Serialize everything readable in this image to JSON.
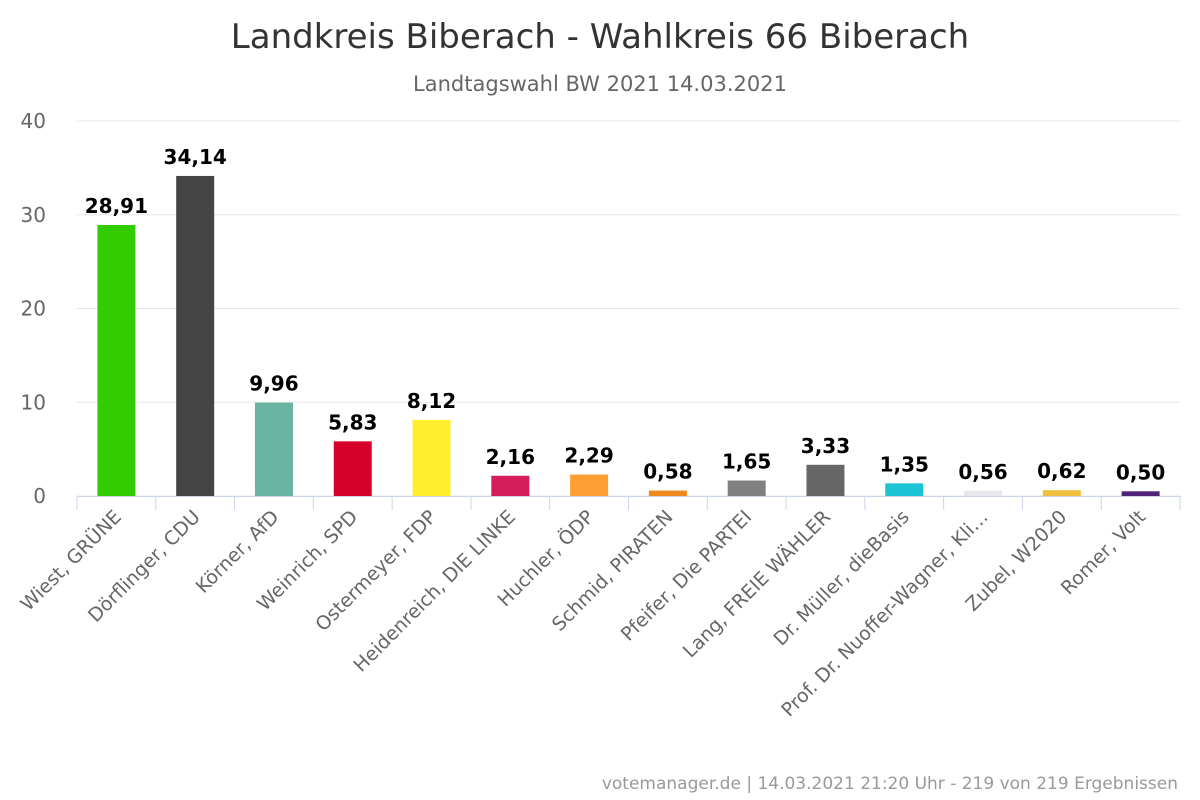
{
  "chart_data": {
    "type": "bar",
    "title": "Landkreis Biberach - Wahlkreis 66 Biberach",
    "subtitle": "Landtagswahl BW 2021 14.03.2021",
    "xlabel": "",
    "ylabel": "",
    "ylim": [
      0,
      40
    ],
    "yticks": [
      0,
      10,
      20,
      30,
      40
    ],
    "ytick_labels": [
      "0",
      "10",
      "20",
      "30",
      "40"
    ],
    "grid": true,
    "categories": [
      "Wiest, GRÜNE",
      "Dörflinger, CDU",
      "Körner, AfD",
      "Weinrich, SPD",
      "Ostermeyer, FDP",
      "Heidenreich, DIE LINKE",
      "Huchler, ÖDP",
      "Schmid, PIRATEN",
      "Pfeifer, Die PARTEI",
      "Lang, FREIE WÄHLER",
      "Dr. Müller, dieBasis",
      "Prof. Dr. Nuoffer-Wagner, Kli…",
      "Zubel, W2020",
      "Romer, Volt"
    ],
    "values": [
      28.91,
      34.14,
      9.96,
      5.83,
      8.12,
      2.16,
      2.29,
      0.58,
      1.65,
      3.33,
      1.35,
      0.56,
      0.62,
      0.5
    ],
    "data_labels": [
      "28,91",
      "34,14",
      "9,96",
      "5,83",
      "8,12",
      "2,16",
      "2,29",
      "0,58",
      "1,65",
      "3,33",
      "1,35",
      "0,56",
      "0,62",
      "0,50"
    ],
    "colors": [
      "#33cc00",
      "#444444",
      "#6bb3a3",
      "#d7002a",
      "#ffee2e",
      "#d41d5a",
      "#ff9e33",
      "#f08a1e",
      "#808080",
      "#666666",
      "#1cc3d4",
      "#e6e6ec",
      "#f0c040",
      "#502379"
    ],
    "credits": "votemanager.de | 14.03.2021 21:20 Uhr - 219 von 219 Ergebnissen"
  }
}
